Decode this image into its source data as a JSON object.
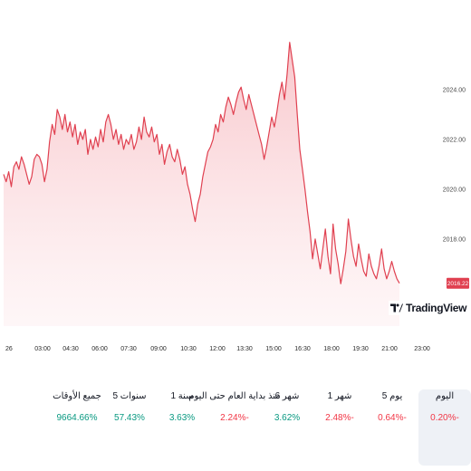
{
  "chart_data": {
    "type": "area",
    "ytick_labels": [
      "2024.00",
      "2022.00",
      "2020.00",
      "2018.00"
    ],
    "ytick_values": [
      2024,
      2022,
      2020,
      2018
    ],
    "ylim": [
      2014.5,
      2026.8
    ],
    "xtick_labels": [
      "26",
      "03:00",
      "04:30",
      "06:00",
      "07:30",
      "09:00",
      "10:30",
      "12:00",
      "13:30",
      "15:00",
      "16:30",
      "18:00",
      "19:30",
      "21:00",
      "23:00"
    ],
    "last_price_label": "2016.22",
    "last_price": 2016.22,
    "line_color": "#e04050",
    "fill_color": "#f8c3c8",
    "grid": false,
    "series": [
      {
        "values": [
          2020.6,
          2020.3,
          2020.7,
          2020.1,
          2020.9,
          2021.1,
          2020.8,
          2021.3,
          2021.0,
          2020.6,
          2020.2,
          2020.5,
          2021.2,
          2021.4,
          2021.3,
          2021.0,
          2020.3,
          2020.8,
          2021.9,
          2022.6,
          2022.2,
          2023.2,
          2022.9,
          2022.4,
          2023.0,
          2022.3,
          2022.7,
          2022.1,
          2022.6,
          2021.8,
          2022.3,
          2022.0,
          2022.4,
          2021.4,
          2022.0,
          2021.6,
          2022.1,
          2021.7,
          2022.4,
          2021.9,
          2022.7,
          2023.0,
          2022.6,
          2022.0,
          2022.4,
          2021.8,
          2022.2,
          2021.6,
          2022.0,
          2021.8,
          2022.2,
          2021.6,
          2021.9,
          2022.5,
          2022.0,
          2022.9,
          2022.3,
          2022.1,
          2022.5,
          2021.9,
          2022.2,
          2021.4,
          2021.8,
          2021.0,
          2021.5,
          2021.8,
          2021.3,
          2021.1,
          2021.6,
          2021.2,
          2020.6,
          2020.9,
          2020.2,
          2019.8,
          2019.2,
          2018.7,
          2019.4,
          2019.8,
          2020.5,
          2021.0,
          2021.5,
          2021.7,
          2022.0,
          2022.6,
          2022.3,
          2023.0,
          2022.7,
          2023.3,
          2023.7,
          2023.4,
          2023.0,
          2023.5,
          2023.9,
          2024.1,
          2023.6,
          2023.2,
          2023.8,
          2023.4,
          2023.0,
          2022.6,
          2022.2,
          2021.8,
          2021.2,
          2021.7,
          2022.3,
          2022.9,
          2022.5,
          2023.1,
          2023.8,
          2024.3,
          2023.6,
          2024.6,
          2025.9,
          2025.2,
          2024.5,
          2023.0,
          2021.6,
          2020.8,
          2020.0,
          2019.1,
          2018.3,
          2017.2,
          2018.0,
          2017.4,
          2016.8,
          2017.6,
          2018.4,
          2017.3,
          2016.6,
          2018.6,
          2017.6,
          2017.0,
          2016.2,
          2016.8,
          2017.5,
          2018.8,
          2018.0,
          2017.3,
          2016.9,
          2017.8,
          2017.2,
          2016.7,
          2016.5,
          2017.4,
          2016.9,
          2016.6,
          2016.4,
          2016.9,
          2017.6,
          2016.8,
          2016.4,
          2016.7,
          2017.1,
          2016.7,
          2016.4,
          2016.22
        ]
      }
    ]
  },
  "logo": {
    "text": "TradingView"
  },
  "periods": [
    {
      "label": "اليوم",
      "value": "0.20%-",
      "trend": "neg",
      "active": true
    },
    {
      "label": "5 يوم",
      "value": "0.64%-",
      "trend": "neg",
      "active": false
    },
    {
      "label": "1 شهر",
      "value": "2.48%-",
      "trend": "neg",
      "active": false
    },
    {
      "label": "6 شهر",
      "value": "3.62%",
      "trend": "pos",
      "active": false
    },
    {
      "label": "منذ بداية العام حتى اليوم",
      "value": "2.24%-",
      "trend": "neg",
      "active": false
    },
    {
      "label": "1 سنة",
      "value": "3.63%",
      "trend": "pos",
      "active": false
    },
    {
      "label": "5 سنوات",
      "value": "57.43%",
      "trend": "pos",
      "active": false
    },
    {
      "label": "جميع الأوقات",
      "value": "9664.66%",
      "trend": "pos",
      "active": false
    }
  ]
}
